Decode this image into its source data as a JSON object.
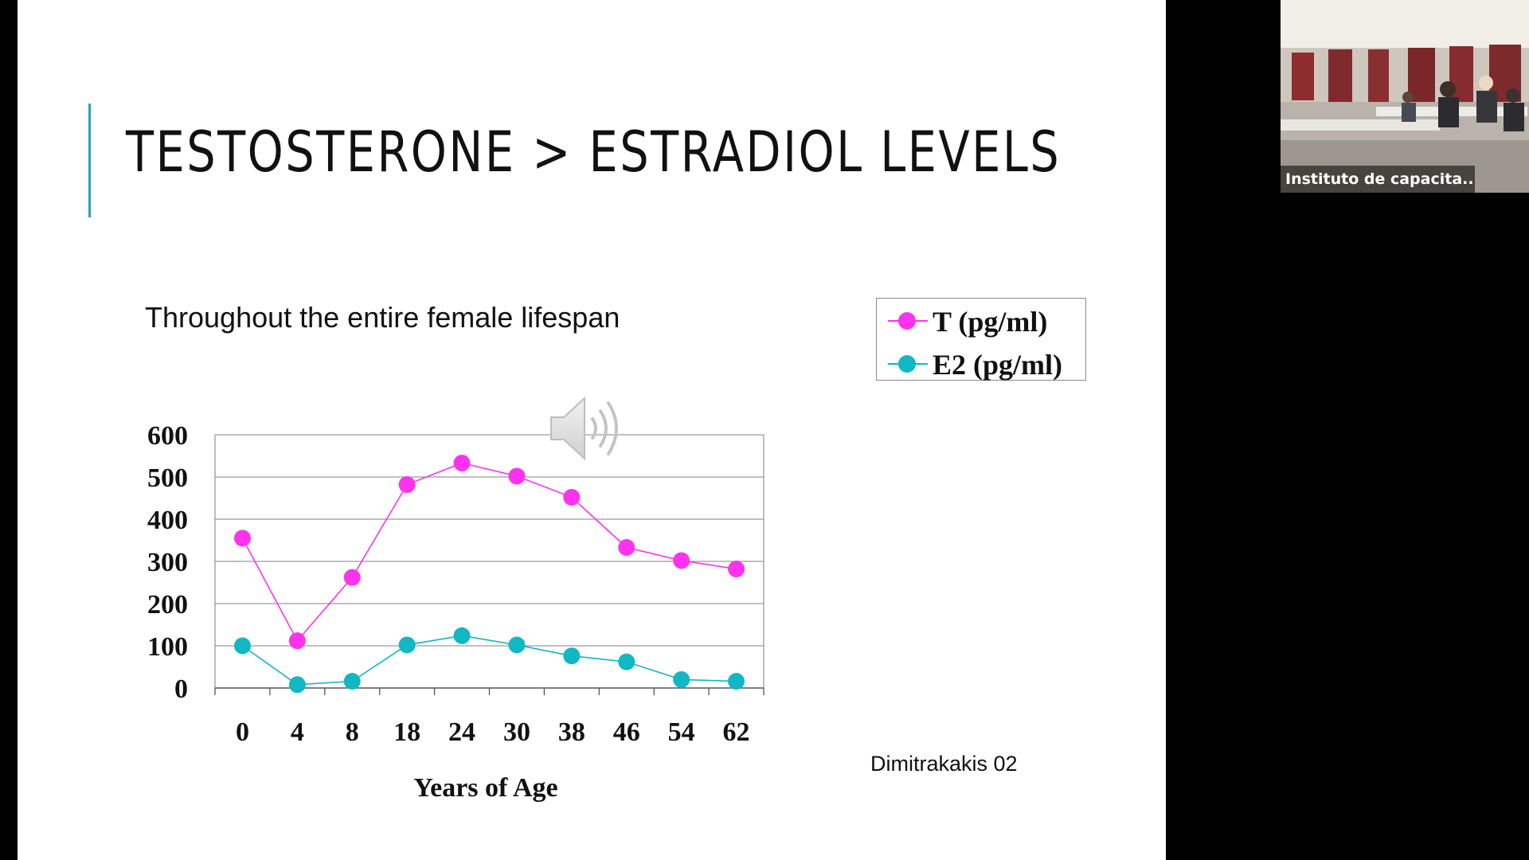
{
  "slide": {
    "title": "TESTOSTERONE > ESTRADIOL LEVELS",
    "subtitle": "Throughout the entire female lifespan",
    "citation": "Dimitrakakis 02",
    "accent_color": "#27a3b5",
    "speaker_icon": "speaker-icon"
  },
  "chart_data": {
    "type": "line",
    "categories": [
      "0",
      "4",
      "8",
      "18",
      "24",
      "30",
      "38",
      "46",
      "54",
      "62"
    ],
    "series": [
      {
        "name": "T (pg/ml)",
        "color": "#ff33ee",
        "values": [
          355,
          112,
          262,
          482,
          533,
          502,
          452,
          333,
          302,
          282
        ]
      },
      {
        "name": "E2 (pg/ml)",
        "color": "#12b7c4",
        "values": [
          100,
          8,
          16,
          102,
          124,
          102,
          76,
          62,
          20,
          16
        ]
      }
    ],
    "xlabel": "Years of Age",
    "ylabel": "",
    "ylim": [
      0,
      600
    ],
    "yticks": [
      0,
      100,
      200,
      300,
      400,
      500,
      600
    ],
    "grid": true,
    "legend_position": "top-right"
  },
  "webcam": {
    "label": "Instituto de capacita..."
  }
}
